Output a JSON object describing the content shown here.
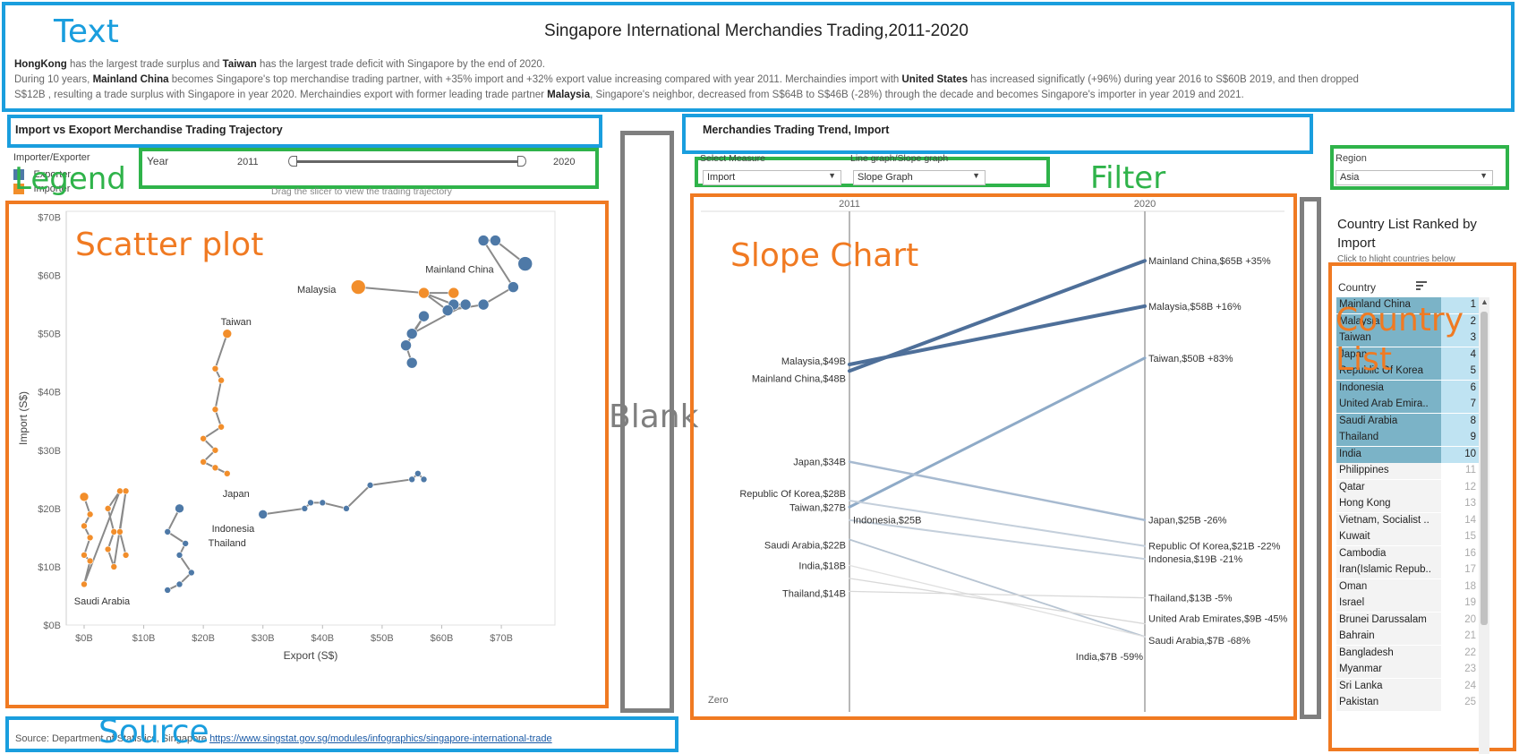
{
  "title": "Singapore International Merchandies Trading,2011-2020",
  "story": {
    "line1": [
      {
        "t": "HongKong",
        "b": true
      },
      {
        "t": " has the largest trade surplus and ",
        "b": false
      },
      {
        "t": "Taiwan",
        "b": true
      },
      {
        "t": " has the largest trade deficit with Singapore by the end of 2020.",
        "b": false
      }
    ],
    "line2": [
      {
        "t": "During 10 years, ",
        "b": false
      },
      {
        "t": "Mainland China",
        "b": true
      },
      {
        "t": " becomes Singapore's top merchandise trading partner, with +35% import and +32% export value increasing compared with year 2011. Merchaindies import with ",
        "b": false
      },
      {
        "t": "United States",
        "b": true
      },
      {
        "t": " has increased significatly (+96%) during year 2016 to S$60B 2019, and then dropped",
        "b": false
      }
    ],
    "line3": [
      {
        "t": "S$12B , resulting a trade surplus with Singapore in year 2020. Merchaindies export with former leading trade partner ",
        "b": false
      },
      {
        "t": "Malaysia",
        "b": true
      },
      {
        "t": ", Singapore's neighbor, decreased from S$64B to S$46B (-28%) through the decade and becomes Singapore's importer in year 2019 and 2021.",
        "b": false
      }
    ]
  },
  "annotations": {
    "text": "Text",
    "legend": "Legend",
    "filter": "Filter",
    "scatter": "Scatter plot",
    "blank": "Blank",
    "slope": "Slope Chart",
    "country_list": "Country List",
    "source": "Source"
  },
  "left_panel": {
    "section_title": "Import vs Exoport Merchandise Trading Trajectory",
    "legend_title": "Importer/Exporter",
    "legend_items": [
      {
        "label": "Exporter",
        "color": "#4e79a7"
      },
      {
        "label": "Importer",
        "color": "#f28e2b"
      }
    ],
    "year_label": "Year",
    "year_start": "2011",
    "year_end": "2020",
    "slicer_hint": "Drag the slicer to view the trading trajectory"
  },
  "right_panel": {
    "section_title": "Merchandies Trading Trend, Import",
    "measure_label": "Select Measure",
    "measure_value": "Import",
    "graph_label": "Line graph/Slope graph",
    "graph_value": "Slope Graph",
    "region_label": "Region",
    "region_value": "Asia",
    "zero_label": "Zero"
  },
  "country_list": {
    "title": "Country List Ranked by Import",
    "hint": "Click to hlight countries below",
    "header": "Country",
    "rows": [
      {
        "name": "Mainland China",
        "rank": "1",
        "selected": true
      },
      {
        "name": "Malaysia",
        "rank": "2",
        "selected": true
      },
      {
        "name": "Taiwan",
        "rank": "3",
        "selected": true
      },
      {
        "name": "Japan",
        "rank": "4",
        "selected": true
      },
      {
        "name": "Republic Of Korea",
        "rank": "5",
        "selected": true
      },
      {
        "name": "Indonesia",
        "rank": "6",
        "selected": true
      },
      {
        "name": "United Arab Emira..",
        "rank": "7",
        "selected": true
      },
      {
        "name": "Saudi Arabia",
        "rank": "8",
        "selected": true
      },
      {
        "name": "Thailand",
        "rank": "9",
        "selected": true
      },
      {
        "name": "India",
        "rank": "10",
        "selected": true
      },
      {
        "name": "Philippines",
        "rank": "11",
        "selected": false
      },
      {
        "name": "Qatar",
        "rank": "12",
        "selected": false
      },
      {
        "name": "Hong Kong",
        "rank": "13",
        "selected": false
      },
      {
        "name": "Vietnam, Socialist ..",
        "rank": "14",
        "selected": false
      },
      {
        "name": "Kuwait",
        "rank": "15",
        "selected": false
      },
      {
        "name": "Cambodia",
        "rank": "16",
        "selected": false
      },
      {
        "name": "Iran(Islamic Repub..",
        "rank": "17",
        "selected": false
      },
      {
        "name": "Oman",
        "rank": "18",
        "selected": false
      },
      {
        "name": "Israel",
        "rank": "19",
        "selected": false
      },
      {
        "name": "Brunei Darussalam",
        "rank": "20",
        "selected": false
      },
      {
        "name": "Bahrain",
        "rank": "21",
        "selected": false
      },
      {
        "name": "Bangladesh",
        "rank": "22",
        "selected": false
      },
      {
        "name": "Myanmar",
        "rank": "23",
        "selected": false
      },
      {
        "name": "Sri Lanka",
        "rank": "24",
        "selected": false
      },
      {
        "name": "Pakistan",
        "rank": "25",
        "selected": false
      }
    ]
  },
  "source": {
    "prefix": "Source: Department of Statistics, Singapore ",
    "link": "https://www.singstat.gov.sg/modules/infographics/singapore-international-trade"
  },
  "chart_data": [
    {
      "type": "scatter",
      "xlabel": "Export (S$)",
      "ylabel": "Import (S$)",
      "xlim": [
        -3,
        79
      ],
      "ylim": [
        0,
        71
      ],
      "xticks": [
        "$0B",
        "$10B",
        "$20B",
        "$30B",
        "$40B",
        "$50B",
        "$60B",
        "$70B"
      ],
      "xtick_values": [
        0,
        10,
        20,
        30,
        40,
        50,
        60,
        70
      ],
      "yticks": [
        "$0B",
        "$10B",
        "$20B",
        "$30B",
        "$40B",
        "$50B",
        "$60B",
        "$70B"
      ],
      "ytick_values": [
        0,
        10,
        20,
        30,
        40,
        50,
        60,
        70
      ],
      "series": [
        {
          "name": "Mainland China",
          "role": "Exporter",
          "points": [
            [
              55,
              45
            ],
            [
              54,
              48
            ],
            [
              57,
              53
            ],
            [
              55,
              50
            ],
            [
              64,
              55
            ],
            [
              62,
              55
            ],
            [
              57,
              57
            ],
            [
              61,
              54
            ],
            [
              67,
              55
            ],
            [
              72,
              58
            ],
            [
              67,
              66
            ],
            [
              69,
              66
            ],
            [
              74,
              62
            ]
          ],
          "labels": {
            "2011": [
              55,
              48
            ],
            "2015": [
              55,
              45
            ],
            "2016": [
              50,
              44
            ],
            "2012": [
              57,
              53
            ],
            "2017": [
              57,
              57
            ],
            "2013": [
              61,
              55
            ],
            "2014": [
              67,
              55
            ],
            "2018": [
              67,
              66
            ],
            "2019": [
              69,
              66
            ],
            "2020": [
              69,
              63
            ],
            "2017b": [
              74,
              62
            ]
          }
        },
        {
          "name": "Malaysia",
          "role": "Importer",
          "points": [
            [
              62,
              57
            ],
            [
              57,
              57
            ],
            [
              46,
              58
            ]
          ]
        },
        {
          "name": "Taiwan",
          "role": "Importer",
          "points": [
            [
              24,
              50
            ],
            [
              22,
              44
            ],
            [
              23,
              42
            ],
            [
              22,
              37
            ],
            [
              23,
              34
            ],
            [
              20,
              32
            ],
            [
              22,
              30
            ],
            [
              20,
              28
            ],
            [
              22,
              27
            ],
            [
              24,
              26
            ]
          ]
        },
        {
          "name": "Saudi Arabia",
          "role": "Importer",
          "points": [
            [
              0,
              22
            ],
            [
              1,
              19
            ],
            [
              0,
              17
            ],
            [
              1,
              15
            ],
            [
              0,
              12
            ],
            [
              1,
              11
            ],
            [
              0,
              7
            ],
            [
              6,
              23
            ],
            [
              4,
              20
            ],
            [
              5,
              16
            ],
            [
              4,
              13
            ],
            [
              5,
              10
            ],
            [
              7,
              23
            ],
            [
              6,
              16
            ],
            [
              7,
              12
            ]
          ]
        },
        {
          "name": "Thailand",
          "role": "Exporter",
          "points": [
            [
              16,
              20
            ],
            [
              14,
              16
            ],
            [
              17,
              14
            ],
            [
              16,
              12
            ],
            [
              18,
              9
            ],
            [
              16,
              7
            ],
            [
              14,
              6
            ]
          ]
        },
        {
          "name": "Indonesia",
          "role": "Exporter",
          "points": [
            [
              30,
              19
            ],
            [
              37,
              20
            ],
            [
              38,
              21
            ],
            [
              40,
              21
            ],
            [
              44,
              20
            ],
            [
              48,
              24
            ],
            [
              55,
              25
            ],
            [
              56,
              26
            ],
            [
              57,
              25
            ]
          ]
        }
      ]
    },
    {
      "type": "slope",
      "x": [
        "2011",
        "2020"
      ],
      "series": [
        {
          "name": "Mainland China",
          "label_start": "Mainland China,$48B",
          "label_end": "Mainland China,$65B +35%",
          "values": [
            48,
            65
          ]
        },
        {
          "name": "Malaysia",
          "label_start": "Malaysia,$49B",
          "label_end": "Malaysia,$58B +16%",
          "values": [
            49,
            58
          ]
        },
        {
          "name": "Taiwan",
          "label_start": "Taiwan,$27B",
          "label_end": "Taiwan,$50B +83%",
          "values": [
            27,
            50
          ]
        },
        {
          "name": "Japan",
          "label_start": "Japan,$34B",
          "label_end": "Japan,$25B -26%",
          "values": [
            34,
            25
          ]
        },
        {
          "name": "Republic Of Korea",
          "label_start": "Republic Of Korea,$28B",
          "label_end": "Republic Of Korea,$21B -22%",
          "values": [
            28,
            21
          ]
        },
        {
          "name": "Indonesia",
          "label_start": "Indonesia,$25B",
          "label_end": "Indonesia,$19B -21%",
          "values": [
            25,
            19
          ]
        },
        {
          "name": "Saudi Arabia",
          "label_start": "Saudi Arabia,$22B",
          "label_end": "Saudi Arabia,$7B -68%",
          "values": [
            22,
            7
          ]
        },
        {
          "name": "India",
          "label_start": "India,$18B",
          "label_end": "India,$7B -59%",
          "values": [
            18,
            7
          ]
        },
        {
          "name": "Thailand",
          "label_start": "Thailand,$14B",
          "label_end": "Thailand,$13B -5%",
          "values": [
            14,
            13
          ]
        },
        {
          "name": "United Arab Emirates",
          "label_start": "",
          "label_end": "United Arab Emirates,$9B -45%",
          "values": [
            16,
            9
          ]
        }
      ]
    }
  ]
}
